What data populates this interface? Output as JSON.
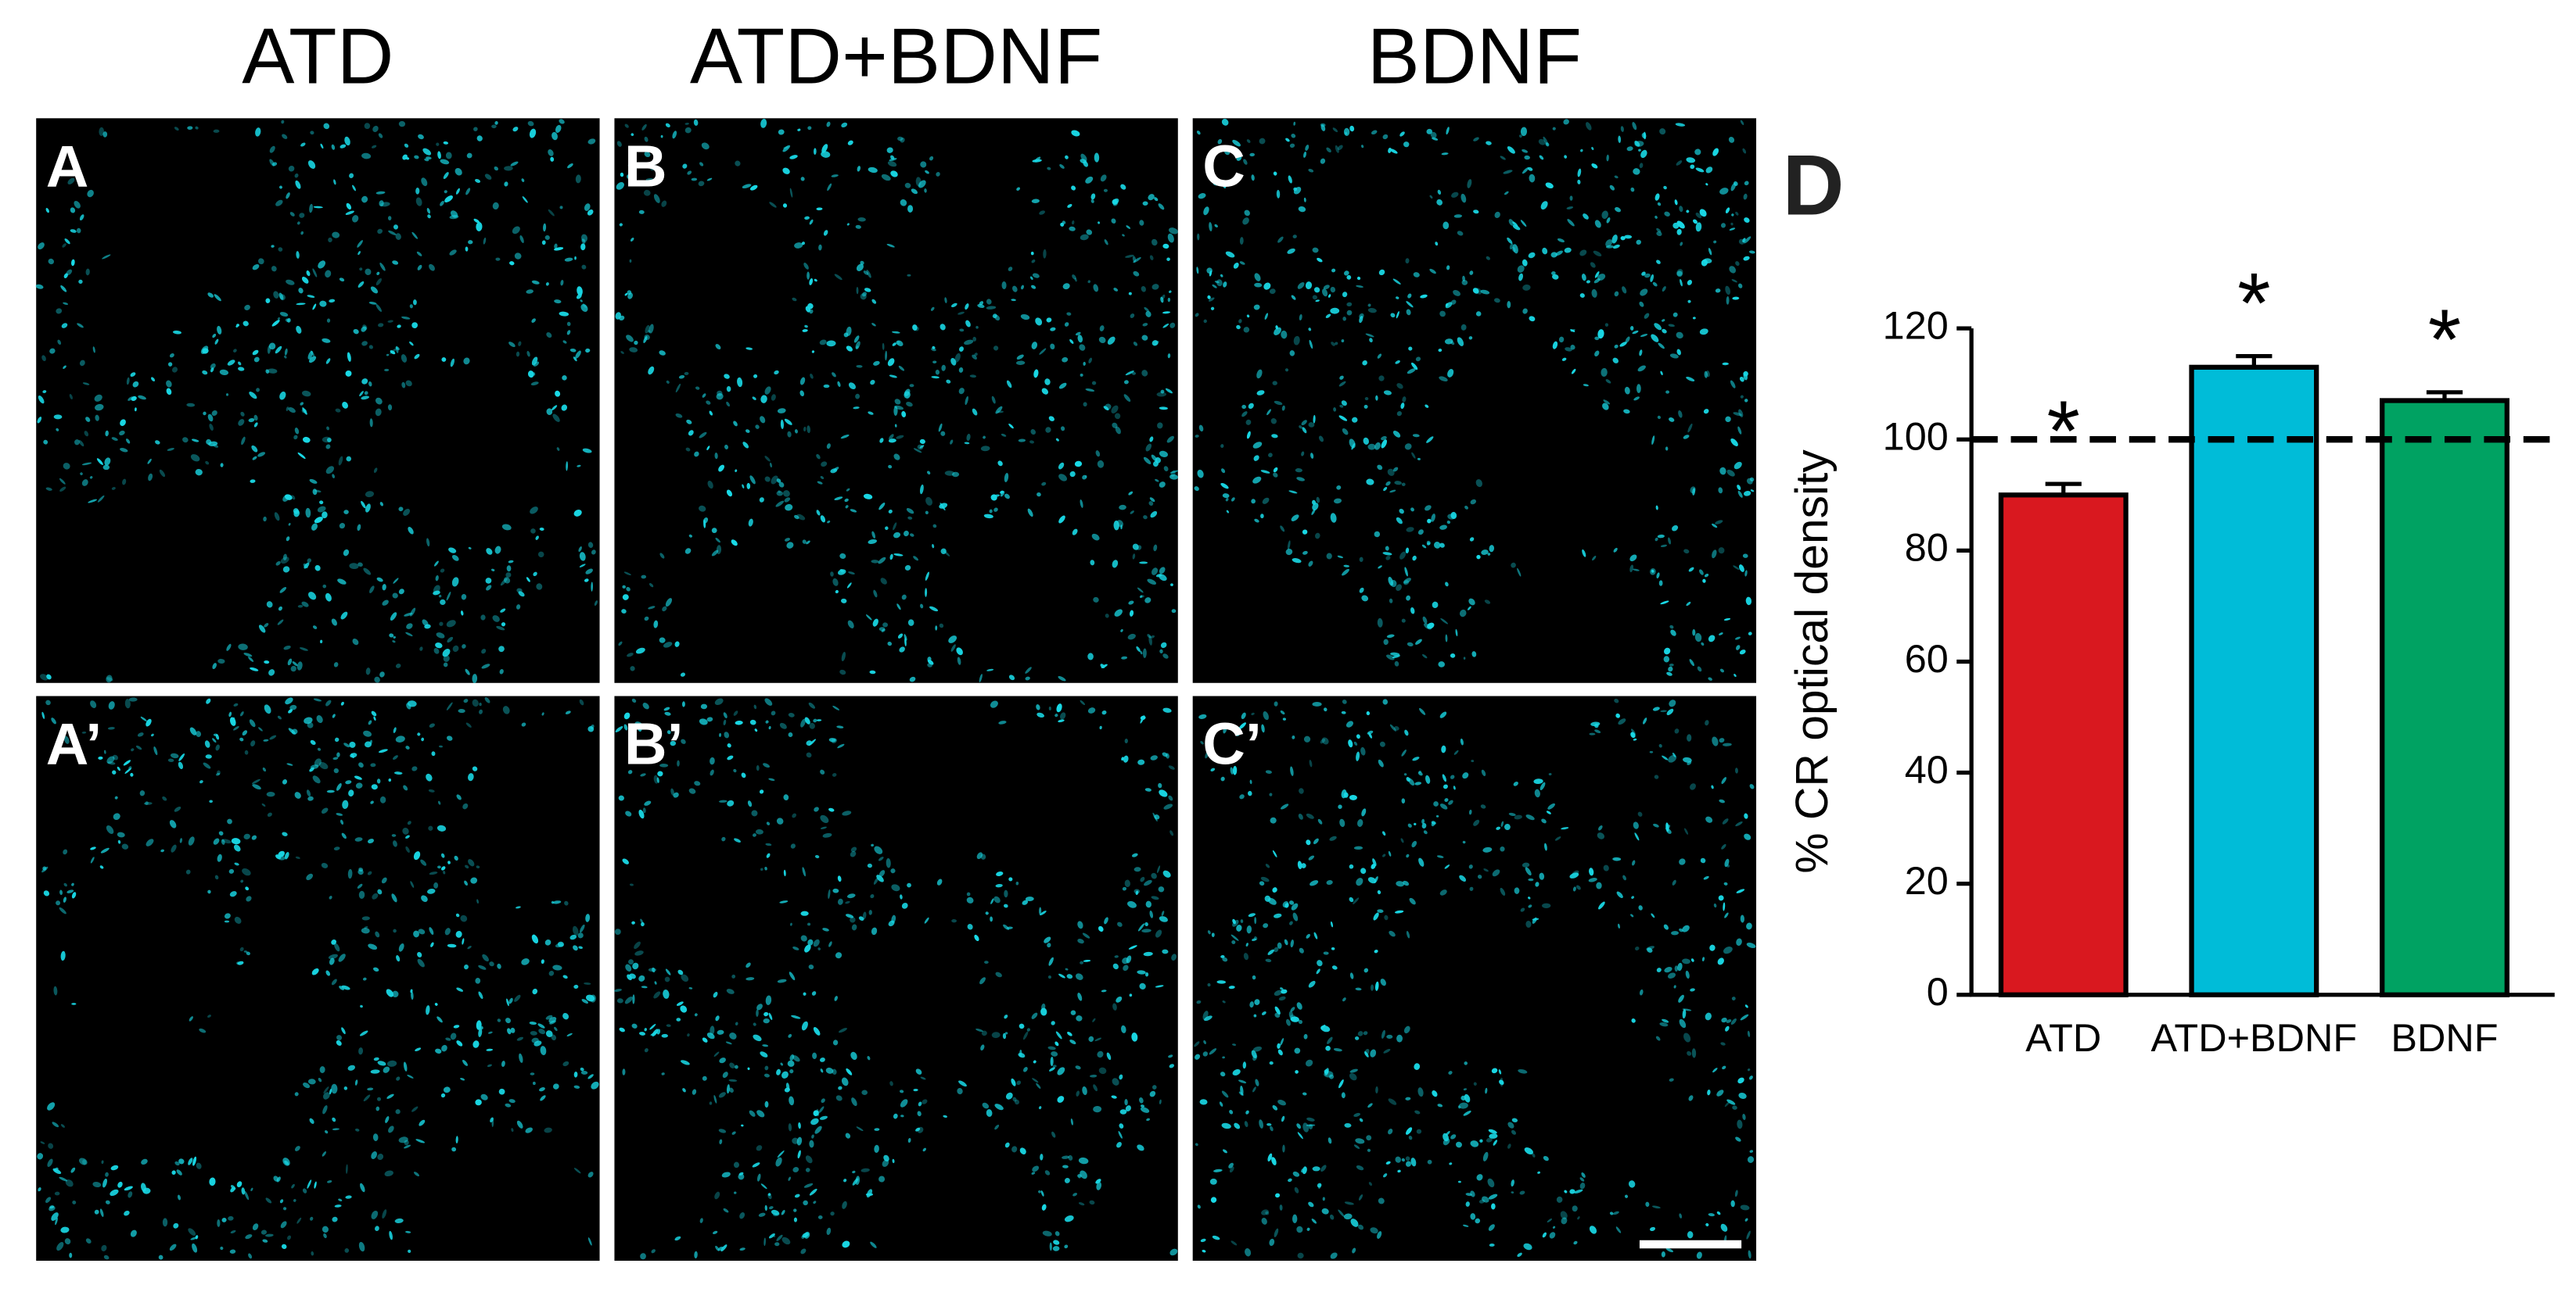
{
  "figure": {
    "column_titles": [
      "ATD",
      "ATD+BDNF",
      "BDNF"
    ],
    "panel_labels": [
      "A",
      "B",
      "C",
      "A’",
      "B’",
      "C’"
    ]
  },
  "chart_data": {
    "type": "bar",
    "panel_label": "D",
    "ylabel": "% CR optical density",
    "categories": [
      "ATD",
      "ATD+BDNF",
      "BDNF"
    ],
    "values": [
      90,
      113,
      107
    ],
    "errors": [
      2,
      2,
      1.5
    ],
    "colors": [
      "#d9181f",
      "#00bcd8",
      "#00a262"
    ],
    "annotations": [
      "*",
      "*",
      "*"
    ],
    "reference_line": 100,
    "ylim": [
      0,
      120
    ],
    "yticks": [
      0,
      20,
      40,
      60,
      80,
      100,
      120
    ]
  }
}
